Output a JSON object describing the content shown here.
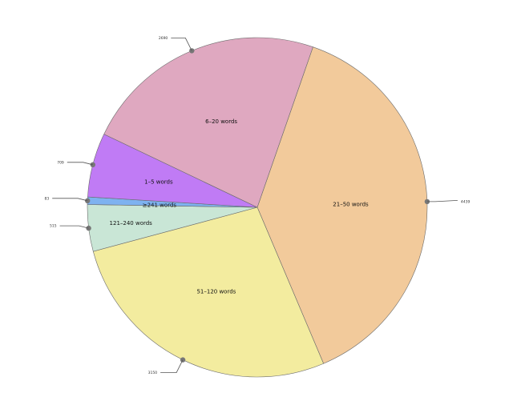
{
  "chart_data": {
    "type": "pie",
    "title": "",
    "legend": "none",
    "categories": [
      "21–50 words",
      "51–120 words",
      "121–240 words",
      "≥241 words",
      "1–5 words",
      "6–20 words"
    ],
    "values": [
      4439,
      3150,
      515,
      83,
      709,
      2690
    ],
    "value_labels": [
      "4439",
      "3150",
      "515",
      "83",
      "709",
      "2690"
    ],
    "colors": {
      "21–50 words": "#f2ca9b",
      "51–120 words": "#f3ec9f",
      "121–240 words": "#c9e6d6",
      "≥241 words": "#7eb2f0",
      "1–5 words": "#c07bf5",
      "6–20 words": "#dfa8c0"
    }
  }
}
